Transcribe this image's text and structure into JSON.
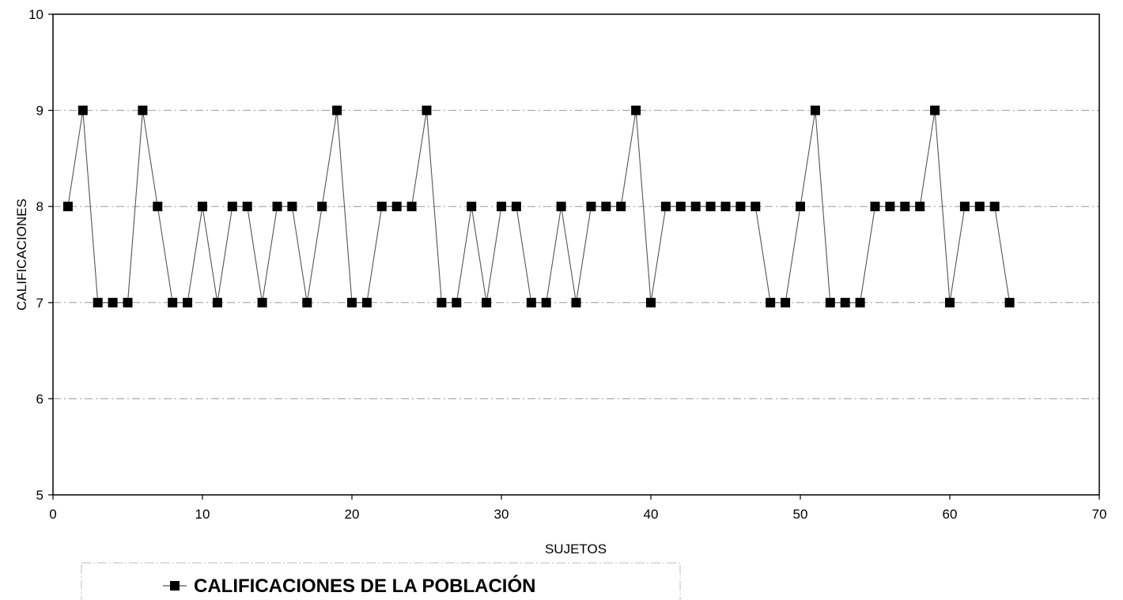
{
  "chart_data": {
    "type": "line",
    "title": "",
    "xlabel": "SUJETOS",
    "ylabel": "CALIFICACIONES",
    "xlim": [
      0,
      70
    ],
    "ylim": [
      5,
      10
    ],
    "x_ticks": [
      0,
      10,
      20,
      30,
      40,
      50,
      60,
      70
    ],
    "y_ticks": [
      5,
      6,
      7,
      8,
      9,
      10
    ],
    "grid": "horizontal",
    "legend_position": "bottom",
    "marker": "square",
    "colors": {
      "line": "#555555",
      "marker": "#000000",
      "grid": "#9a9a9a",
      "frame": "#000000"
    },
    "series": [
      {
        "name": "CALIFICACIONES DE LA POBLACIÓN",
        "x": [
          1,
          2,
          3,
          4,
          5,
          6,
          7,
          8,
          9,
          10,
          11,
          12,
          13,
          14,
          15,
          16,
          17,
          18,
          19,
          20,
          21,
          22,
          23,
          24,
          25,
          26,
          27,
          28,
          29,
          30,
          31,
          32,
          33,
          34,
          35,
          36,
          37,
          38,
          39,
          40,
          41,
          42,
          43,
          44,
          45,
          46,
          47,
          48,
          49,
          50,
          51,
          52,
          53,
          54,
          55,
          56,
          57,
          58,
          59,
          60,
          61,
          62,
          63,
          64
        ],
        "y": [
          8,
          9,
          7,
          7,
          7,
          9,
          8,
          7,
          7,
          8,
          7,
          8,
          8,
          7,
          8,
          8,
          7,
          8,
          9,
          7,
          7,
          8,
          8,
          8,
          9,
          7,
          7,
          8,
          7,
          8,
          8,
          7,
          7,
          8,
          7,
          8,
          8,
          8,
          9,
          7,
          8,
          8,
          8,
          8,
          8,
          8,
          8,
          7,
          7,
          8,
          9,
          7,
          7,
          7,
          8,
          8,
          8,
          8,
          9,
          7,
          8,
          8,
          8,
          7
        ]
      }
    ]
  }
}
